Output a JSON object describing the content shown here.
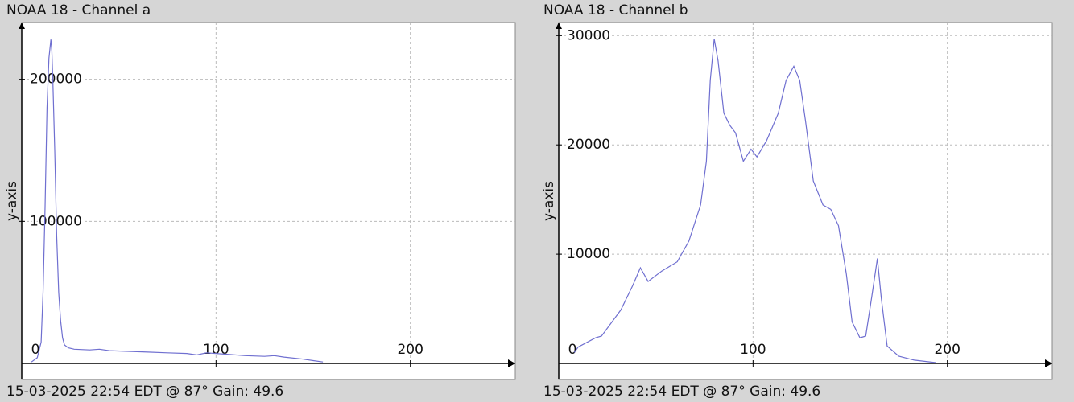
{
  "chart_data": [
    {
      "type": "line",
      "title": "NOAA 18 - Channel a",
      "y_label": "y-axis",
      "annotation": "15-03-2025 22:54 EDT @ 87° Gain: 49.6",
      "color": "#6f6fd0",
      "grid": true,
      "xlim": [
        0,
        254
      ],
      "ylim": [
        0,
        240000
      ],
      "xticks": [
        0,
        100,
        200
      ],
      "yticks": [
        100000,
        200000
      ],
      "x": [
        5,
        8,
        10,
        11,
        12,
        13,
        14,
        15,
        15.5,
        16,
        17,
        18,
        19,
        20,
        21,
        22,
        24,
        27,
        35,
        40,
        45,
        55,
        65,
        75,
        85,
        90,
        95,
        105,
        115,
        125,
        130,
        135,
        145,
        150,
        155
      ],
      "values": [
        1000,
        4000,
        15000,
        50000,
        110000,
        180000,
        215000,
        228000,
        220000,
        200000,
        150000,
        90000,
        50000,
        30000,
        18000,
        13000,
        11000,
        10000,
        9500,
        10000,
        9000,
        8500,
        8000,
        7500,
        7000,
        6000,
        7500,
        6500,
        5500,
        5000,
        5500,
        4500,
        3000,
        2000,
        1000
      ]
    },
    {
      "type": "line",
      "title": "NOAA 18 - Channel b",
      "y_label": "y-axis",
      "annotation": "15-03-2025 22:54 EDT @ 87° Gain: 49.6",
      "color": "#6f6fd0",
      "grid": true,
      "xlim": [
        0,
        254
      ],
      "ylim": [
        0,
        31200
      ],
      "xticks": [
        0,
        100,
        200
      ],
      "yticks": [
        10000,
        20000,
        30000
      ],
      "x": [
        8,
        10,
        19,
        22,
        32,
        38,
        42,
        46,
        53,
        61,
        67,
        73,
        76,
        78,
        80,
        82,
        85,
        88,
        91,
        95,
        99,
        102,
        107,
        113,
        117,
        121,
        124,
        127,
        131,
        136,
        140,
        144,
        148,
        151,
        155,
        158,
        161,
        164,
        166,
        169,
        175,
        183,
        194
      ],
      "values": [
        1000,
        1500,
        2350,
        2500,
        4900,
        7100,
        8750,
        7500,
        8450,
        9300,
        11200,
        14500,
        18500,
        25900,
        29700,
        27700,
        22900,
        21800,
        21100,
        18500,
        19600,
        18900,
        20400,
        22900,
        25900,
        27200,
        25900,
        22200,
        16700,
        14500,
        14100,
        12600,
        8200,
        3800,
        2350,
        2500,
        6000,
        9600,
        6000,
        1600,
        660,
        300,
        70
      ]
    }
  ]
}
